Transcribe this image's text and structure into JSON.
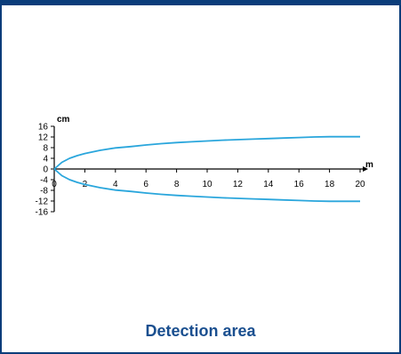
{
  "caption": "Detection area",
  "colors": {
    "frame": "#0a3d7a",
    "curve": "#2aa6dc",
    "caption": "#1a4f8f"
  },
  "chart_data": {
    "type": "line",
    "title": "",
    "xlabel": "m",
    "ylabel": "cm",
    "xlim": [
      0,
      20
    ],
    "ylim": [
      -16,
      16
    ],
    "x_ticks": [
      0,
      2,
      4,
      6,
      8,
      10,
      12,
      14,
      16,
      18,
      20
    ],
    "y_ticks": [
      16,
      12,
      8,
      4,
      0,
      -4,
      -8,
      -12,
      -16
    ],
    "grid": false,
    "series": [
      {
        "x": [
          0,
          0.5,
          1,
          1.5,
          2,
          3,
          4,
          5,
          6,
          7,
          8,
          9,
          10,
          11,
          12,
          13,
          14,
          15,
          16,
          17,
          18,
          19,
          20
        ],
        "values": [
          0,
          2.5,
          4.0,
          5.0,
          5.8,
          7.0,
          7.9,
          8.4,
          9.0,
          9.5,
          9.9,
          10.2,
          10.5,
          10.8,
          11.0,
          11.2,
          11.4,
          11.6,
          11.8,
          12.0,
          12.1,
          12.1,
          12.1
        ]
      },
      {
        "x": [
          0,
          0.5,
          1,
          1.5,
          2,
          3,
          4,
          5,
          6,
          7,
          8,
          9,
          10,
          11,
          12,
          13,
          14,
          15,
          16,
          17,
          18,
          19,
          20
        ],
        "values": [
          0,
          -2.5,
          -4.0,
          -5.0,
          -5.8,
          -7.0,
          -7.9,
          -8.4,
          -9.0,
          -9.5,
          -9.9,
          -10.2,
          -10.5,
          -10.8,
          -11.0,
          -11.2,
          -11.4,
          -11.6,
          -11.8,
          -12.0,
          -12.1,
          -12.1,
          -12.1
        ]
      }
    ]
  }
}
